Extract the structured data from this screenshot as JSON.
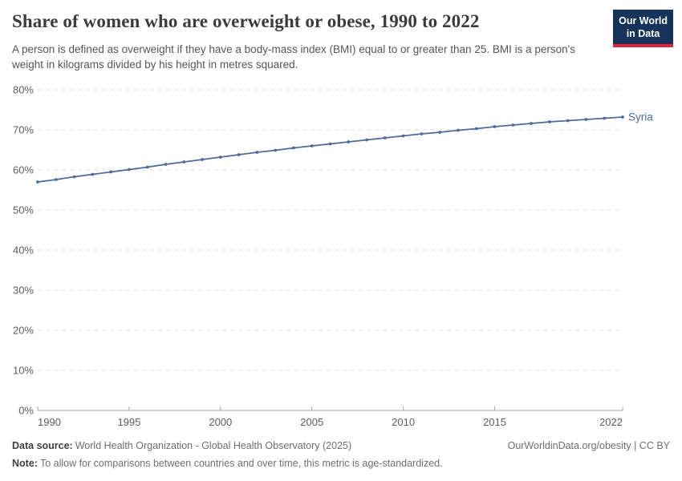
{
  "header": {
    "title": "Share of women who are overweight or obese, 1990 to 2022",
    "subtitle": "A person is defined as overweight if they have a body-mass index (BMI) equal to or greater than 25. BMI is a person's weight in kilograms divided by his height in metres squared.",
    "logo": {
      "line1": "Our World",
      "line2": "in Data"
    }
  },
  "colors": {
    "line": "#4C6A9C",
    "logo_bg": "#16335A",
    "logo_stripe": "#E0243A",
    "grid": "#DCDCDC",
    "axis": "#A3A3A3",
    "tick_text": "#5D5D5D"
  },
  "chart_data": {
    "type": "line",
    "title": "Share of women who are overweight or obese, 1990 to 2022",
    "xlabel": "",
    "ylabel": "",
    "xlim": [
      1990,
      2022
    ],
    "ylim": [
      0,
      80
    ],
    "x_ticks": [
      1990,
      1995,
      2000,
      2005,
      2010,
      2015,
      2022
    ],
    "y_ticks": [
      0,
      10,
      20,
      30,
      40,
      50,
      60,
      70,
      80
    ],
    "y_tick_suffix": "%",
    "grid": "horizontal-dashed",
    "legend": "end-of-line-label",
    "markers": true,
    "series": [
      {
        "name": "Syria",
        "color": "#4C6A9C",
        "x": [
          1990,
          1991,
          1992,
          1993,
          1994,
          1995,
          1996,
          1997,
          1998,
          1999,
          2000,
          2001,
          2002,
          2003,
          2004,
          2005,
          2006,
          2007,
          2008,
          2009,
          2010,
          2011,
          2012,
          2013,
          2014,
          2015,
          2016,
          2017,
          2018,
          2019,
          2020,
          2021,
          2022
        ],
        "values": [
          57.0,
          57.6,
          58.3,
          58.9,
          59.5,
          60.1,
          60.7,
          61.4,
          62.0,
          62.6,
          63.2,
          63.8,
          64.4,
          64.9,
          65.5,
          66.0,
          66.5,
          67.0,
          67.5,
          68.0,
          68.5,
          69.0,
          69.4,
          69.9,
          70.3,
          70.8,
          71.2,
          71.6,
          72.0,
          72.3,
          72.6,
          72.9,
          73.2
        ]
      }
    ]
  },
  "footer": {
    "data_source_label": "Data source:",
    "data_source_value": "World Health Organization - Global Health Observatory (2025)",
    "rights": "OurWorldinData.org/obesity | CC BY",
    "note_label": "Note:",
    "note_value": "To allow for comparisons between countries and over time, this metric is age-standardized."
  }
}
